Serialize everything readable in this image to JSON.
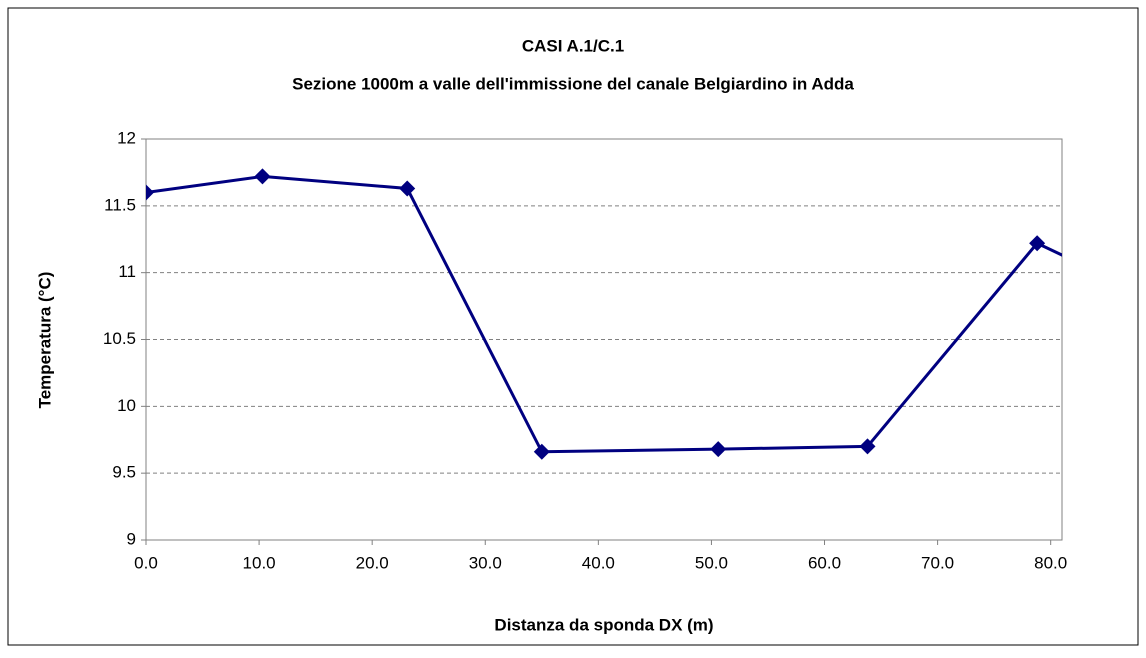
{
  "chart_data": {
    "type": "line",
    "title": "CASI A.1/C.1",
    "subtitle": "Sezione 1000m a valle dell'immissione del canale Belgiardino in Adda",
    "x_label": "Distanza da sponda DX (m)",
    "y_label": "Temperatura (°C)",
    "x": [
      0,
      10.3,
      23.1,
      35.0,
      50.6,
      63.8,
      78.8,
      88
    ],
    "series": [
      {
        "name": "Temperatura",
        "color": "#000080",
        "values": [
          11.6,
          11.72,
          11.63,
          9.66,
          9.68,
          9.7,
          11.22,
          10.85
        ]
      }
    ],
    "xlim": [
      0,
      81
    ],
    "xticks": [
      {
        "value": 0,
        "label": "0.0"
      },
      {
        "value": 10,
        "label": "10.0"
      },
      {
        "value": 20,
        "label": "20.0"
      },
      {
        "value": 30,
        "label": "30.0"
      },
      {
        "value": 40,
        "label": "40.0"
      },
      {
        "value": 50,
        "label": "50.0"
      },
      {
        "value": 60,
        "label": "60.0"
      },
      {
        "value": 70,
        "label": "70.0"
      },
      {
        "value": 80,
        "label": "80.0"
      }
    ],
    "ylim": [
      9,
      12
    ],
    "yticks": [
      9,
      9.5,
      10,
      10.5,
      11,
      11.5,
      12
    ],
    "grid": true
  }
}
